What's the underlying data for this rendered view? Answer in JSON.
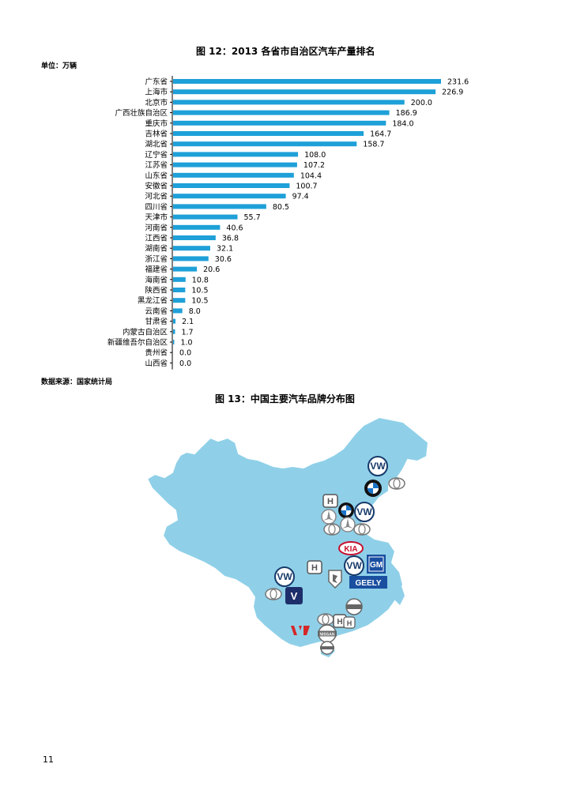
{
  "chart_title": "图 12：2013 各省市自治区汽车产量排名",
  "unit_label": "单位：万辆",
  "source_label": "数据来源：国家统计局",
  "map_title": "图 13：中国主要汽车品牌分布图",
  "page_number": "11",
  "colors": {
    "bar": "#1ea0d8",
    "map_fill": "#8fd0e8",
    "map_stroke": "#ffffff"
  },
  "map": {
    "logos": [
      {
        "name": "VW",
        "label": ""
      },
      {
        "name": "BMW",
        "label": ""
      },
      {
        "name": "Toyota",
        "label": ""
      },
      {
        "name": "Honda",
        "label": "H"
      },
      {
        "name": "Mercedes",
        "label": ""
      },
      {
        "name": "KIA",
        "label": "KIA"
      },
      {
        "name": "GM",
        "label": "GM"
      },
      {
        "name": "GEELY",
        "label": "GEELY"
      },
      {
        "name": "Peugeot",
        "label": ""
      },
      {
        "name": "Changan",
        "label": "V"
      },
      {
        "name": "Nissan",
        "label": "NISSAN"
      },
      {
        "name": "Wuling",
        "label": ""
      }
    ]
  },
  "chart_data": {
    "type": "bar",
    "orientation": "horizontal",
    "title": "图 12：2013 各省市自治区汽车产量排名",
    "categories": [
      "广东省",
      "上海市",
      "北京市",
      "广西壮族自治区",
      "重庆市",
      "吉林省",
      "湖北省",
      "辽宁省",
      "江苏省",
      "山东省",
      "安徽省",
      "河北省",
      "四川省",
      "天津市",
      "河南省",
      "江西省",
      "湖南省",
      "浙江省",
      "福建省",
      "海南省",
      "陕西省",
      "黑龙江省",
      "云南省",
      "甘肃省",
      "内蒙古自治区",
      "新疆维吾尔自治区",
      "贵州省",
      "山西省"
    ],
    "values": [
      231.6,
      226.9,
      200.0,
      186.9,
      184.0,
      164.7,
      158.7,
      108.0,
      107.2,
      104.4,
      100.7,
      97.4,
      80.5,
      55.7,
      40.6,
      36.8,
      32.1,
      30.6,
      20.6,
      10.8,
      10.5,
      10.5,
      8.0,
      2.1,
      1.7,
      1.0,
      0.0,
      0.0
    ],
    "value_labels": [
      "231.6",
      "226.9",
      "200.0",
      "186.9",
      "184.0",
      "164.7",
      "158.7",
      "108.0",
      "107.2",
      "104.4",
      "100.7",
      "97.4",
      "80.5",
      "55.7",
      "40.6",
      "36.8",
      "32.1",
      "30.6",
      "20.6",
      "10.8",
      "10.5",
      "10.5",
      "8.0",
      "2.1",
      "1.7",
      "1.0",
      "0.0",
      "0.0"
    ],
    "xlim": [
      0,
      231.6
    ],
    "grid": false,
    "legend": "none"
  }
}
